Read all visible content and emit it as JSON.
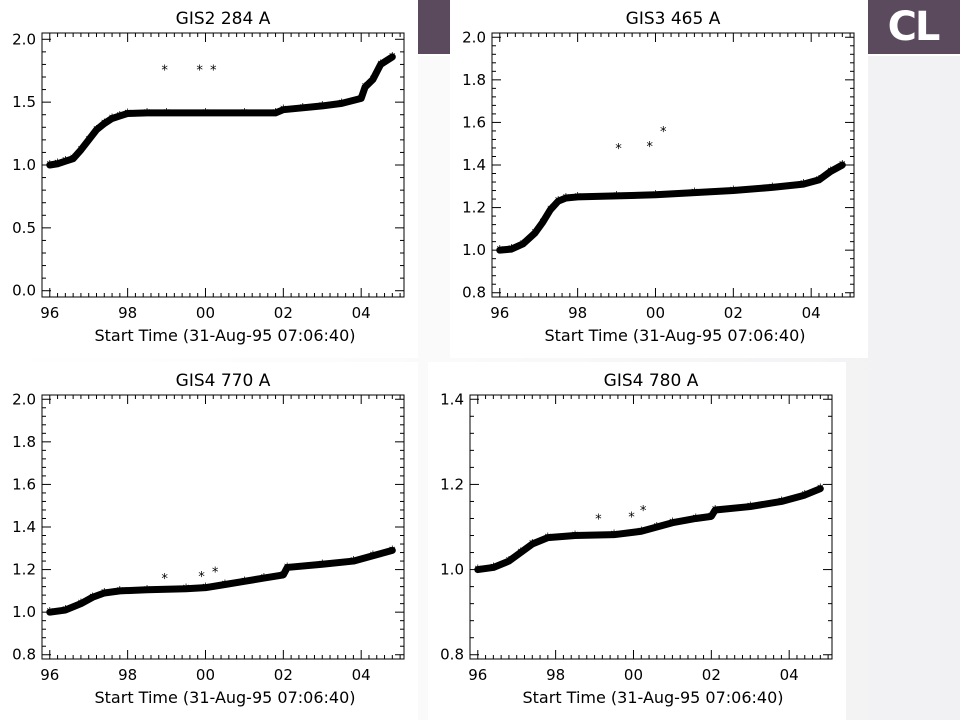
{
  "logo_text": "CL",
  "colors": {
    "accent": "#5b4a5e",
    "plot_ink": "#000000",
    "panel_bg": "#ffffff"
  },
  "chart_data": [
    {
      "type": "scatter",
      "title": "GIS2  284 A",
      "xlabel": "Start Time (31-Aug-95 07:06:40)",
      "ylabel": "",
      "xlim": [
        95.8,
        105.1
      ],
      "ylim": [
        -0.05,
        2.05
      ],
      "xticks": [
        96,
        98,
        100,
        102,
        104
      ],
      "xtick_labels": [
        "96",
        "98",
        "00",
        "02",
        "04"
      ],
      "yticks": [
        0.0,
        0.5,
        1.0,
        1.5,
        2.0
      ],
      "ytick_labels": [
        "0.0",
        "0.5",
        "1.0",
        "1.5",
        "2.0"
      ],
      "marker": "*",
      "series_curve": [
        [
          96.0,
          1.0
        ],
        [
          96.2,
          1.01
        ],
        [
          96.4,
          1.03
        ],
        [
          96.6,
          1.05
        ],
        [
          96.8,
          1.12
        ],
        [
          97.0,
          1.2
        ],
        [
          97.2,
          1.28
        ],
        [
          97.4,
          1.33
        ],
        [
          97.6,
          1.37
        ],
        [
          97.8,
          1.39
        ],
        [
          98.0,
          1.41
        ],
        [
          98.5,
          1.415
        ],
        [
          99.0,
          1.415
        ],
        [
          100.0,
          1.415
        ],
        [
          101.0,
          1.415
        ],
        [
          101.8,
          1.415
        ],
        [
          102.0,
          1.44
        ],
        [
          102.5,
          1.455
        ],
        [
          103.0,
          1.47
        ],
        [
          103.5,
          1.49
        ],
        [
          104.0,
          1.53
        ],
        [
          104.1,
          1.62
        ],
        [
          104.3,
          1.68
        ],
        [
          104.5,
          1.8
        ],
        [
          104.8,
          1.86
        ]
      ],
      "outliers": [
        [
          98.95,
          1.76
        ],
        [
          99.85,
          1.76
        ],
        [
          100.2,
          1.76
        ]
      ]
    },
    {
      "type": "scatter",
      "title": "GIS3  465 A",
      "xlabel": "Start Time (31-Aug-95 07:06:40)",
      "ylabel": "",
      "xlim": [
        95.8,
        105.1
      ],
      "ylim": [
        0.78,
        2.02
      ],
      "xticks": [
        96,
        98,
        100,
        102,
        104
      ],
      "xtick_labels": [
        "96",
        "98",
        "00",
        "02",
        "04"
      ],
      "yticks": [
        0.8,
        1.0,
        1.2,
        1.4,
        1.6,
        1.8,
        2.0
      ],
      "ytick_labels": [
        "0.8",
        "1.0",
        "1.2",
        "1.4",
        "1.6",
        "1.8",
        "2.0"
      ],
      "marker": "*",
      "series_curve": [
        [
          96.0,
          1.0
        ],
        [
          96.3,
          1.005
        ],
        [
          96.6,
          1.03
        ],
        [
          96.9,
          1.08
        ],
        [
          97.1,
          1.13
        ],
        [
          97.3,
          1.19
        ],
        [
          97.5,
          1.23
        ],
        [
          97.7,
          1.245
        ],
        [
          98.0,
          1.25
        ],
        [
          99.0,
          1.255
        ],
        [
          100.0,
          1.26
        ],
        [
          101.0,
          1.27
        ],
        [
          102.0,
          1.28
        ],
        [
          103.0,
          1.295
        ],
        [
          103.8,
          1.31
        ],
        [
          104.2,
          1.33
        ],
        [
          104.5,
          1.37
        ],
        [
          104.8,
          1.4
        ]
      ],
      "outliers": [
        [
          99.05,
          1.48
        ],
        [
          99.85,
          1.49
        ],
        [
          100.2,
          1.56
        ]
      ]
    },
    {
      "type": "scatter",
      "title": "GIS4  770 A",
      "xlabel": "Start Time (31-Aug-95 07:06:40)",
      "ylabel": "",
      "xlim": [
        95.8,
        105.1
      ],
      "ylim": [
        0.78,
        2.02
      ],
      "xticks": [
        96,
        98,
        100,
        102,
        104
      ],
      "xtick_labels": [
        "96",
        "98",
        "00",
        "02",
        "04"
      ],
      "yticks": [
        0.8,
        1.0,
        1.2,
        1.4,
        1.6,
        1.8,
        2.0
      ],
      "ytick_labels": [
        "0.8",
        "1.0",
        "1.2",
        "1.4",
        "1.6",
        "1.8",
        "2.0"
      ],
      "marker": "*",
      "series_curve": [
        [
          96.0,
          1.0
        ],
        [
          96.4,
          1.01
        ],
        [
          96.8,
          1.04
        ],
        [
          97.1,
          1.07
        ],
        [
          97.4,
          1.09
        ],
        [
          97.8,
          1.1
        ],
        [
          98.5,
          1.105
        ],
        [
          99.5,
          1.11
        ],
        [
          100.0,
          1.115
        ],
        [
          100.5,
          1.13
        ],
        [
          101.0,
          1.145
        ],
        [
          101.5,
          1.16
        ],
        [
          102.0,
          1.175
        ],
        [
          102.1,
          1.21
        ],
        [
          103.0,
          1.225
        ],
        [
          103.8,
          1.24
        ],
        [
          104.3,
          1.265
        ],
        [
          104.8,
          1.29
        ]
      ],
      "outliers": [
        [
          98.95,
          1.16
        ],
        [
          99.9,
          1.17
        ],
        [
          100.25,
          1.19
        ]
      ]
    },
    {
      "type": "scatter",
      "title": "GIS4  780 A",
      "xlabel": "Start Time (31-Aug-95 07:06:40)",
      "ylabel": "",
      "xlim": [
        95.8,
        105.1
      ],
      "ylim": [
        0.79,
        1.41
      ],
      "xticks": [
        96,
        98,
        100,
        102,
        104
      ],
      "xtick_labels": [
        "96",
        "98",
        "00",
        "02",
        "04"
      ],
      "yticks": [
        0.8,
        1.0,
        1.2,
        1.4
      ],
      "ytick_labels": [
        "0.8",
        "1.0",
        "1.2",
        "1.4"
      ],
      "marker": "*",
      "series_curve": [
        [
          96.0,
          1.0
        ],
        [
          96.4,
          1.005
        ],
        [
          96.8,
          1.02
        ],
        [
          97.1,
          1.04
        ],
        [
          97.4,
          1.06
        ],
        [
          97.8,
          1.075
        ],
        [
          98.5,
          1.08
        ],
        [
          99.5,
          1.082
        ],
        [
          100.2,
          1.09
        ],
        [
          100.6,
          1.1
        ],
        [
          101.0,
          1.11
        ],
        [
          101.6,
          1.12
        ],
        [
          102.0,
          1.125
        ],
        [
          102.1,
          1.14
        ],
        [
          103.0,
          1.148
        ],
        [
          103.8,
          1.16
        ],
        [
          104.4,
          1.175
        ],
        [
          104.8,
          1.19
        ]
      ],
      "outliers": [
        [
          99.1,
          1.12
        ],
        [
          99.95,
          1.125
        ],
        [
          100.25,
          1.14
        ]
      ]
    }
  ]
}
